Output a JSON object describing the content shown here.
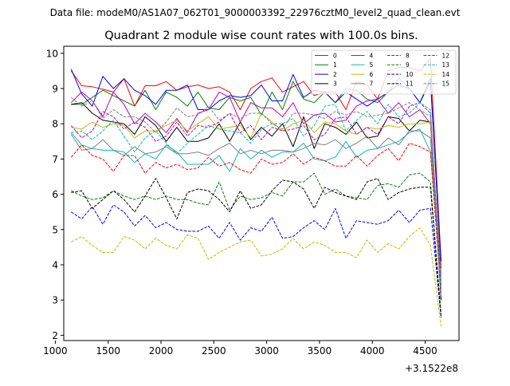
{
  "figure": {
    "suptitle": "Data file: modeM0/AS1A07_062T01_9000003392_22976cztM0_level2_quad_clean.evt"
  },
  "chart_data": {
    "type": "line",
    "title": "Quadrant 2 module wise count rates with 100.0s bins.",
    "xlabel": "",
    "ylabel": "",
    "x_offset_label": "+3.1522e8",
    "xlim": [
      1080,
      4820
    ],
    "ylim": [
      1.85,
      10.2
    ],
    "x_ticks": [
      1000,
      1500,
      2000,
      2500,
      3000,
      3500,
      4000,
      4500
    ],
    "x_tick_labels": [
      "1000",
      "1500",
      "2000",
      "2500",
      "3000",
      "3500",
      "4000",
      "4500"
    ],
    "y_ticks": [
      2,
      3,
      4,
      5,
      6,
      7,
      8,
      9,
      10
    ],
    "y_tick_labels": [
      "2",
      "3",
      "4",
      "5",
      "6",
      "7",
      "8",
      "9",
      "10"
    ],
    "grid": false,
    "legend_position": "top-right",
    "x": [
      1150,
      1250,
      1350,
      1450,
      1550,
      1650,
      1750,
      1850,
      1950,
      2050,
      2150,
      2250,
      2350,
      2450,
      2550,
      2650,
      2750,
      2850,
      2950,
      3050,
      3150,
      3250,
      3350,
      3450,
      3550,
      3650,
      3750,
      3850,
      3950,
      4050,
      4150,
      4250,
      4350,
      4450,
      4550,
      4650
    ],
    "series": [
      {
        "name": "0",
        "color": "#ff0000",
        "dash": "solid",
        "values": [
          9.5,
          9.08,
          9.05,
          8.98,
          8.9,
          9.28,
          8.5,
          9.08,
          9.08,
          9.2,
          8.95,
          9.05,
          9.1,
          9.0,
          9.05,
          8.9,
          8.4,
          9.0,
          9.2,
          9.3,
          8.9,
          9.05,
          9.2,
          8.8,
          8.9,
          8.9,
          8.4,
          9.2,
          9.1,
          8.7,
          9.5,
          9.6,
          9.6,
          9.5,
          9.85,
          4.1
        ]
      },
      {
        "name": "1",
        "color": "#008000",
        "dash": "solid",
        "values": [
          8.55,
          8.55,
          8.75,
          8.95,
          8.8,
          8.65,
          8.5,
          8.95,
          8.4,
          8.9,
          8.75,
          8.5,
          8.9,
          8.45,
          8.4,
          8.75,
          8.65,
          8.75,
          8.25,
          8.9,
          8.4,
          9.2,
          8.7,
          8.6,
          8.9,
          8.6,
          9.0,
          8.95,
          8.7,
          8.6,
          8.9,
          9.3,
          9.0,
          8.6,
          9.3,
          3.9
        ]
      },
      {
        "name": "2",
        "color": "#0000ff",
        "dash": "solid",
        "values": [
          9.55,
          8.85,
          8.5,
          9.35,
          9.0,
          9.28,
          8.95,
          8.8,
          8.55,
          8.95,
          8.95,
          9.1,
          8.4,
          8.4,
          8.65,
          8.8,
          8.75,
          8.8,
          9.1,
          8.65,
          8.65,
          9.4,
          8.75,
          8.95,
          8.9,
          8.6,
          8.9,
          8.7,
          8.5,
          8.7,
          8.9,
          9.1,
          9.0,
          8.6,
          9.2,
          4.1
        ]
      },
      {
        "name": "3",
        "color": "#000000",
        "dash": "solid",
        "values": [
          8.55,
          8.6,
          8.3,
          8.1,
          8.05,
          8.0,
          7.7,
          8.2,
          7.95,
          7.5,
          7.9,
          7.5,
          7.5,
          7.6,
          8.0,
          7.5,
          8.05,
          7.55,
          7.9,
          7.65,
          8.0,
          7.35,
          8.2,
          7.3,
          8.0,
          7.9,
          7.7,
          8.05,
          7.6,
          7.65,
          8.2,
          8.15,
          7.8,
          8.1,
          8.05,
          3.0
        ]
      },
      {
        "name": "4",
        "color": "#bf00bf",
        "dash": "solid",
        "values": [
          8.6,
          8.9,
          8.65,
          8.2,
          8.9,
          8.55,
          8.0,
          8.3,
          8.05,
          7.75,
          8.15,
          7.75,
          8.3,
          8.4,
          8.9,
          8.75,
          8.05,
          8.6,
          8.45,
          8.45,
          8.2,
          8.6,
          8.0,
          8.25,
          8.3,
          8.05,
          8.1,
          8.5,
          8.65,
          8.7,
          8.3,
          8.6,
          8.2,
          8.4,
          8.0,
          3.7
        ]
      },
      {
        "name": "5",
        "color": "#00bfbf",
        "dash": "solid",
        "values": [
          7.75,
          7.4,
          7.3,
          7.25,
          7.25,
          7.2,
          6.9,
          7.15,
          7.0,
          7.4,
          7.2,
          6.85,
          6.85,
          6.85,
          7.1,
          6.65,
          7.3,
          7.0,
          7.25,
          7.05,
          7.2,
          7.2,
          7.45,
          7.0,
          6.95,
          7.05,
          7.5,
          7.05,
          7.25,
          7.3,
          7.4,
          7.5,
          7.75,
          7.85,
          7.2,
          3.6
        ]
      },
      {
        "name": "6",
        "color": "#bfbf00",
        "dash": "solid",
        "values": [
          7.9,
          7.85,
          8.05,
          7.9,
          8.0,
          7.95,
          7.6,
          7.8,
          7.8,
          7.95,
          8.1,
          7.8,
          8.0,
          8.2,
          7.85,
          7.9,
          7.95,
          7.6,
          8.3,
          8.05,
          7.8,
          8.0,
          8.1,
          7.75,
          8.05,
          8.0,
          7.8,
          7.7,
          7.9,
          7.85,
          7.95,
          7.9,
          8.0,
          8.0,
          8.05,
          3.5
        ]
      },
      {
        "name": "7",
        "color": "#808080",
        "dash": "solid",
        "values": [
          7.7,
          7.25,
          7.3,
          7.55,
          7.25,
          7.1,
          7.35,
          7.15,
          7.2,
          7.35,
          7.15,
          7.15,
          7.2,
          7.1,
          7.3,
          7.45,
          7.15,
          7.25,
          7.15,
          7.25,
          7.25,
          7.2,
          7.3,
          7.45,
          7.4,
          7.55,
          7.3,
          7.45,
          7.65,
          7.3,
          7.6,
          7.4,
          7.8,
          7.8,
          7.6,
          3.3
        ]
      },
      {
        "name": "8",
        "color": "#ff0000",
        "dash": "dashed",
        "values": [
          7.05,
          7.4,
          7.1,
          7.0,
          6.65,
          7.1,
          7.1,
          6.6,
          6.9,
          6.75,
          6.85,
          6.7,
          6.75,
          7.05,
          6.8,
          6.9,
          6.7,
          6.6,
          7.0,
          6.85,
          6.9,
          7.15,
          6.85,
          7.05,
          6.95,
          6.8,
          6.8,
          7.1,
          6.8,
          7.1,
          7.3,
          6.95,
          7.45,
          7.35,
          7.2,
          3.2
        ]
      },
      {
        "name": "9",
        "color": "#008000",
        "dash": "dashed",
        "values": [
          6.1,
          5.95,
          5.85,
          5.9,
          6.1,
          5.95,
          5.85,
          5.95,
          5.85,
          5.95,
          5.85,
          5.85,
          5.75,
          5.7,
          6.35,
          5.55,
          5.95,
          5.85,
          5.9,
          6.05,
          5.95,
          6.35,
          6.35,
          6.6,
          6.0,
          6.15,
          5.95,
          5.9,
          5.85,
          6.25,
          6.3,
          6.2,
          6.55,
          6.6,
          6.35,
          2.6
        ]
      },
      {
        "name": "10",
        "color": "#0000ff",
        "dash": "dashed",
        "values": [
          5.5,
          5.3,
          5.65,
          5.15,
          5.7,
          5.5,
          5.1,
          5.4,
          5.05,
          5.2,
          5.0,
          4.95,
          4.95,
          5.1,
          4.75,
          5.2,
          4.7,
          5.05,
          4.95,
          5.35,
          4.75,
          4.8,
          5.05,
          5.25,
          5.0,
          5.6,
          4.75,
          5.25,
          5.2,
          5.15,
          5.25,
          5.55,
          5.2,
          5.55,
          5.6,
          2.5
        ]
      },
      {
        "name": "11",
        "color": "#000000",
        "dash": "dashed",
        "values": [
          6.05,
          6.1,
          5.6,
          5.85,
          6.1,
          5.85,
          5.5,
          5.95,
          6.45,
          5.9,
          5.3,
          6.05,
          6.15,
          6.1,
          5.85,
          5.5,
          6.1,
          5.6,
          5.7,
          6.1,
          6.4,
          6.35,
          6.15,
          5.6,
          6.2,
          6.05,
          5.95,
          5.85,
          6.35,
          6.45,
          5.85,
          6.05,
          6.15,
          6.2,
          6.2,
          2.5
        ]
      },
      {
        "name": "12",
        "color": "#bf00bf",
        "dash": "dashed",
        "values": [
          7.95,
          7.6,
          7.8,
          8.35,
          8.2,
          7.85,
          8.05,
          7.9,
          7.5,
          7.65,
          8.05,
          7.65,
          7.95,
          7.9,
          8.05,
          8.3,
          7.75,
          7.95,
          7.55,
          7.9,
          7.8,
          7.85,
          7.95,
          7.55,
          7.7,
          8.15,
          8.2,
          7.7,
          7.9,
          7.7,
          8.2,
          8.0,
          8.5,
          8.6,
          8.3,
          3.4
        ]
      },
      {
        "name": "13",
        "color": "#00bfbf",
        "dash": "dashed",
        "values": [
          7.75,
          7.8,
          7.55,
          7.8,
          8.1,
          7.65,
          7.2,
          7.6,
          7.8,
          7.45,
          7.15,
          7.45,
          7.7,
          7.95,
          7.85,
          7.8,
          7.75,
          7.45,
          7.85,
          8.0,
          8.0,
          8.15,
          7.65,
          7.95,
          8.5,
          8.55,
          7.8,
          8.1,
          8.35,
          8.0,
          8.55,
          8.2,
          8.3,
          8.6,
          8.4,
          3.2
        ]
      },
      {
        "name": "14",
        "color": "#bfbf00",
        "dash": "dashed",
        "values": [
          4.65,
          4.8,
          4.55,
          4.35,
          4.35,
          4.8,
          4.7,
          4.45,
          4.75,
          4.55,
          4.45,
          4.85,
          4.75,
          4.15,
          4.35,
          4.5,
          4.65,
          4.7,
          4.25,
          4.3,
          4.45,
          4.75,
          4.45,
          4.65,
          4.55,
          4.35,
          4.35,
          4.2,
          4.7,
          4.35,
          4.6,
          4.45,
          4.8,
          5.05,
          4.55,
          2.25
        ]
      },
      {
        "name": "15",
        "color": "#808080",
        "dash": "dashed",
        "values": [
          8.75,
          8.5,
          8.65,
          8.15,
          8.4,
          8.2,
          8.2,
          8.05,
          7.75,
          8.05,
          8.45,
          8.2,
          8.25,
          8.5,
          8.1,
          8.3,
          8.15,
          8.3,
          8.3,
          8.0,
          7.85,
          8.3,
          8.3,
          8.25,
          8.15,
          8.35,
          8.25,
          8.35,
          8.2,
          8.25,
          8.3,
          8.45,
          8.6,
          8.4,
          8.2,
          3.1
        ]
      }
    ]
  }
}
